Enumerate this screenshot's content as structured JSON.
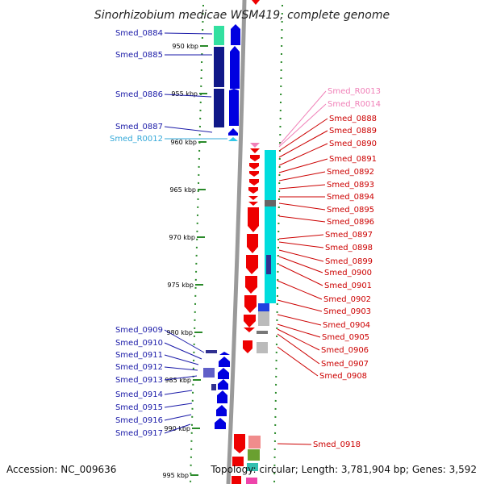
{
  "title": "Sinorhizobium medicae WSM419, complete genome",
  "footer": {
    "accession": "Accession: NC_009636",
    "info": "Topology: circular; Length: 3,781,904 bp; Genes: 3,592"
  },
  "colors": {
    "left_label": "#1a1aa8",
    "right_label": "#cc0000",
    "trna_label": "#33a8d8",
    "rrna_label": "#f080b8",
    "backbone": "#9a9a9a",
    "tick": "#2a8a2a",
    "cds_reverse": "#0000e0",
    "cds_forward": "#ee0000",
    "cog_track": "#00dddd"
  },
  "ticks": [
    "950 kbp",
    "955 kbp",
    "960 kbp",
    "965 kbp",
    "970 kbp",
    "975 kbp",
    "980 kbp",
    "985 kbp",
    "990 kbp",
    "995 kbp"
  ],
  "labels_left": [
    {
      "text": "Smed_0884",
      "type": "cds"
    },
    {
      "text": "Smed_0885",
      "type": "cds"
    },
    {
      "text": "Smed_0886",
      "type": "cds"
    },
    {
      "text": "Smed_0887",
      "type": "cds"
    },
    {
      "text": "Smed_R0012",
      "type": "trna"
    },
    {
      "text": "Smed_0909",
      "type": "cds"
    },
    {
      "text": "Smed_0910",
      "type": "cds"
    },
    {
      "text": "Smed_0911",
      "type": "cds"
    },
    {
      "text": "Smed_0912",
      "type": "cds"
    },
    {
      "text": "Smed_0913",
      "type": "cds"
    },
    {
      "text": "Smed_0914",
      "type": "cds"
    },
    {
      "text": "Smed_0915",
      "type": "cds"
    },
    {
      "text": "Smed_0916",
      "type": "cds"
    },
    {
      "text": "Smed_0917",
      "type": "cds"
    }
  ],
  "labels_right": [
    {
      "text": "Smed_R0013",
      "type": "rrna"
    },
    {
      "text": "Smed_R0014",
      "type": "rrna"
    },
    {
      "text": "Smed_0888",
      "type": "cds"
    },
    {
      "text": "Smed_0889",
      "type": "cds"
    },
    {
      "text": "Smed_0890",
      "type": "cds"
    },
    {
      "text": "Smed_0891",
      "type": "cds"
    },
    {
      "text": "Smed_0892",
      "type": "cds"
    },
    {
      "text": "Smed_0893",
      "type": "cds"
    },
    {
      "text": "Smed_0894",
      "type": "cds"
    },
    {
      "text": "Smed_0895",
      "type": "cds"
    },
    {
      "text": "Smed_0896",
      "type": "cds"
    },
    {
      "text": "Smed_0897",
      "type": "cds"
    },
    {
      "text": "Smed_0898",
      "type": "cds"
    },
    {
      "text": "Smed_0899",
      "type": "cds"
    },
    {
      "text": "Smed_0900",
      "type": "cds"
    },
    {
      "text": "Smed_0901",
      "type": "cds"
    },
    {
      "text": "Smed_0902",
      "type": "cds"
    },
    {
      "text": "Smed_0903",
      "type": "cds"
    },
    {
      "text": "Smed_0904",
      "type": "cds"
    },
    {
      "text": "Smed_0905",
      "type": "cds"
    },
    {
      "text": "Smed_0906",
      "type": "cds"
    },
    {
      "text": "Smed_0907",
      "type": "cds"
    },
    {
      "text": "Smed_0908",
      "type": "cds"
    },
    {
      "text": "Smed_0918",
      "type": "cds"
    }
  ]
}
